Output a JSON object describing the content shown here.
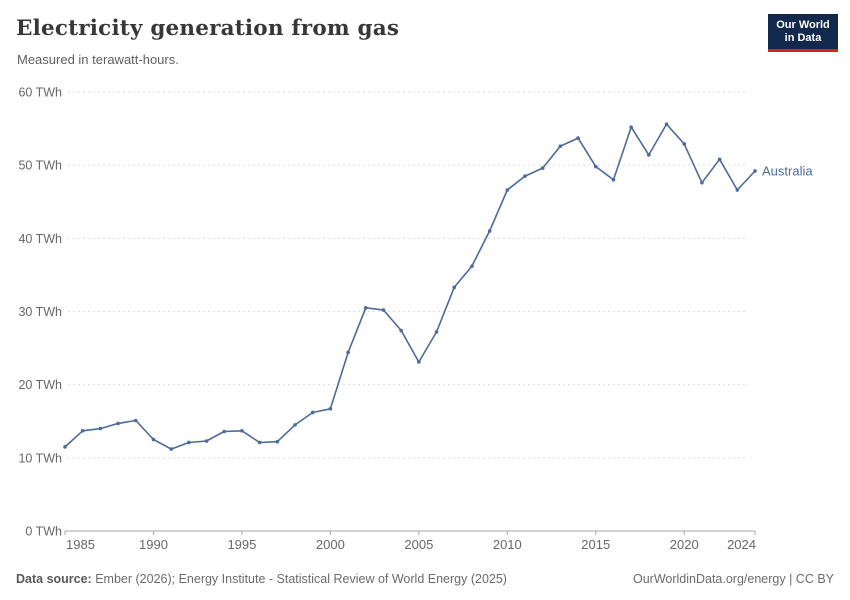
{
  "header": {
    "title": "Electricity generation from gas",
    "subtitle": "Measured in terawatt-hours."
  },
  "logo": {
    "line1": "Our World",
    "line2": "in Data",
    "bg_color": "#12294d",
    "accent_color": "#d2261b"
  },
  "chart_data": {
    "type": "line",
    "title": "Electricity generation from gas",
    "subtitle": "Measured in terawatt-hours.",
    "y_unit": "TWh",
    "xlim": [
      1985,
      2024
    ],
    "ylim": [
      0,
      60
    ],
    "xticks": [
      1985,
      1990,
      1995,
      2000,
      2005,
      2010,
      2015,
      2020,
      2024
    ],
    "yticks": [
      0,
      10,
      20,
      30,
      40,
      50,
      60
    ],
    "ytick_suffix": " TWh",
    "grid": true,
    "legend_position": "end-of-line",
    "colors": {
      "line": "#4c6a9c",
      "grid": "#dcdcdc",
      "axis": "#a5a5a5",
      "tick_label": "#676767"
    },
    "series": [
      {
        "name": "Australia",
        "color": "#4c6a9c",
        "x": [
          1985,
          1986,
          1987,
          1988,
          1989,
          1990,
          1991,
          1992,
          1993,
          1994,
          1995,
          1996,
          1997,
          1998,
          1999,
          2000,
          2001,
          2002,
          2003,
          2004,
          2005,
          2006,
          2007,
          2008,
          2009,
          2010,
          2011,
          2012,
          2013,
          2014,
          2015,
          2016,
          2017,
          2018,
          2019,
          2020,
          2021,
          2022,
          2023,
          2024
        ],
        "values": [
          11.5,
          13.7,
          14.0,
          14.7,
          15.1,
          12.5,
          11.2,
          12.1,
          12.3,
          13.6,
          13.7,
          12.1,
          12.2,
          14.5,
          16.2,
          16.7,
          24.4,
          30.5,
          30.2,
          27.4,
          23.1,
          27.2,
          33.3,
          36.2,
          41.0,
          46.6,
          48.5,
          49.6,
          52.6,
          53.7,
          49.8,
          48.0,
          55.2,
          51.4,
          55.6,
          52.9,
          47.6,
          50.8,
          46.6,
          49.2
        ]
      }
    ]
  },
  "footer": {
    "source_label": "Data source:",
    "source_text": " Ember (2026); Energy Institute - Statistical Review of World Energy (2025)",
    "license_text": "OurWorldinData.org/energy | CC BY"
  }
}
